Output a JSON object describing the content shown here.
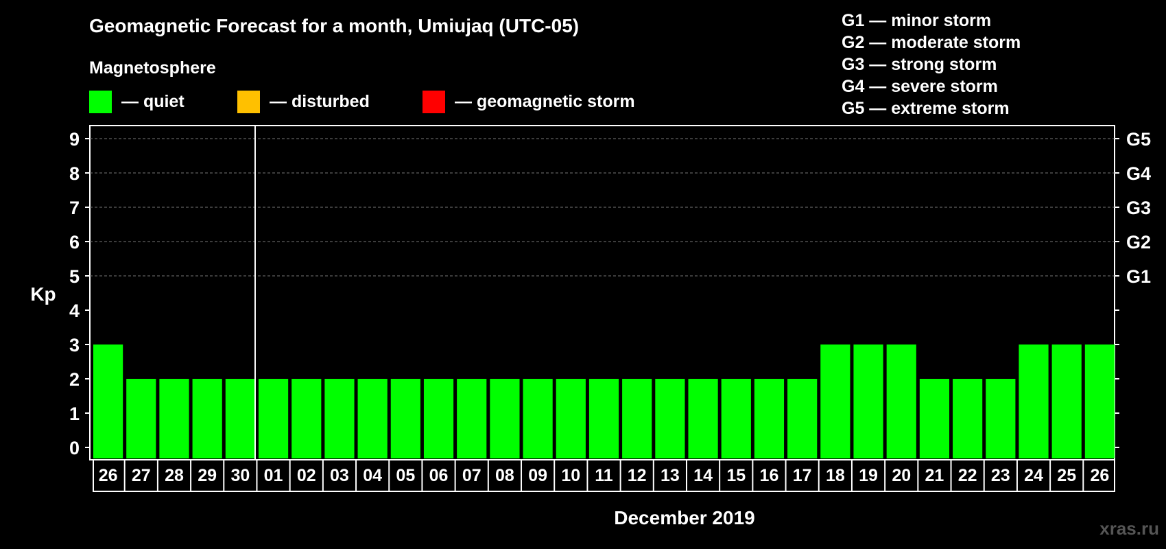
{
  "chart_data": {
    "type": "bar",
    "title": "Geomagnetic Forecast for a month, Umiujaq (UTC-05)",
    "section_label": "Magnetosphere",
    "legend": [
      {
        "label": "— quiet",
        "color": "#00ff00"
      },
      {
        "label": "— disturbed",
        "color": "#ffc000"
      },
      {
        "label": "— geomagnetic storm",
        "color": "#ff0000"
      }
    ],
    "storm_scale": [
      "G1 — minor storm",
      "G2 — moderate storm",
      "G3 — strong storm",
      "G4 — severe storm",
      "G5 — extreme storm"
    ],
    "ylabel": "Kp",
    "xlabel": "December 2019",
    "ylim": [
      0,
      9
    ],
    "yticks": [
      "0",
      "1",
      "2",
      "3",
      "4",
      "5",
      "6",
      "7",
      "8",
      "9"
    ],
    "right_axis": [
      {
        "kp": 5,
        "label": "G1"
      },
      {
        "kp": 6,
        "label": "G2"
      },
      {
        "kp": 7,
        "label": "G3"
      },
      {
        "kp": 8,
        "label": "G4"
      },
      {
        "kp": 9,
        "label": "G5"
      }
    ],
    "grid_from_kp": 5,
    "categories": [
      "26",
      "27",
      "28",
      "29",
      "30",
      "01",
      "02",
      "03",
      "04",
      "05",
      "06",
      "07",
      "08",
      "09",
      "10",
      "11",
      "12",
      "13",
      "14",
      "15",
      "16",
      "17",
      "18",
      "19",
      "20",
      "21",
      "22",
      "23",
      "24",
      "25",
      "26"
    ],
    "values": [
      3,
      2,
      2,
      2,
      2,
      2,
      2,
      2,
      2,
      2,
      2,
      2,
      2,
      2,
      2,
      2,
      2,
      2,
      2,
      2,
      2,
      2,
      3,
      3,
      3,
      2,
      2,
      2,
      3,
      3,
      3
    ],
    "month_separator_after_index": 4,
    "bar_color": "#00ff00"
  },
  "watermark": "xras.ru"
}
